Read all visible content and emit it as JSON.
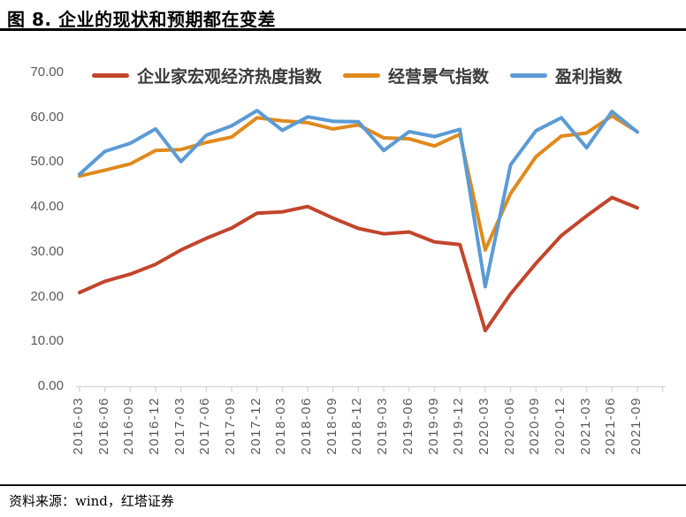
{
  "figure": {
    "title": "图 8. 企业的现状和预期都在变差"
  },
  "source_line": {
    "text": "资料来源：wind，红塔证券"
  },
  "chart_data": {
    "type": "line",
    "categories": [
      "2016-03",
      "2016-06",
      "2016-09",
      "2016-12",
      "2017-03",
      "2017-06",
      "2017-09",
      "2017-12",
      "2018-03",
      "2018-06",
      "2018-09",
      "2018-12",
      "2019-03",
      "2019-06",
      "2019-09",
      "2019-12",
      "2020-03",
      "2020-06",
      "2020-09",
      "2020-12",
      "2021-03",
      "2021-06",
      "2021-09"
    ],
    "series": [
      {
        "name": "企业家宏观经济热度指数",
        "color": "#C2452C",
        "values": [
          20.9,
          23.4,
          25.0,
          27.2,
          30.4,
          33.0,
          35.3,
          38.6,
          38.9,
          40.1,
          37.5,
          35.2,
          34.0,
          34.4,
          32.2,
          31.6,
          12.4,
          20.6,
          27.4,
          33.6,
          38.0,
          42.1,
          39.8
        ]
      },
      {
        "name": "经营景气指数",
        "color": "#E08A1D",
        "values": [
          46.9,
          48.2,
          49.6,
          52.6,
          52.8,
          54.4,
          55.6,
          59.9,
          59.2,
          58.8,
          57.4,
          58.3,
          55.4,
          55.2,
          53.6,
          56.2,
          30.4,
          43.0,
          51.2,
          55.8,
          56.5,
          60.3,
          56.8
        ]
      },
      {
        "name": "盈利指数",
        "color": "#5B9BD5",
        "values": [
          47.3,
          52.4,
          54.2,
          57.4,
          50.1,
          56.0,
          58.1,
          61.5,
          57.1,
          60.1,
          59.1,
          59.0,
          52.6,
          56.8,
          55.7,
          57.3,
          22.2,
          49.4,
          57.0,
          59.9,
          53.2,
          61.3,
          56.7
        ]
      }
    ],
    "ylim": [
      0,
      70
    ],
    "ytick_labels": [
      "70.00",
      "60.00",
      "50.00",
      "40.00",
      "30.00",
      "20.00",
      "10.00",
      "0.00"
    ],
    "ytick_values": [
      70,
      60,
      50,
      40,
      30,
      20,
      10,
      0
    ],
    "xlabel": "",
    "ylabel": "",
    "legend_position": "top",
    "grid": false,
    "axis_color": "#D9D9D9",
    "tick_text_color": "#595959"
  }
}
